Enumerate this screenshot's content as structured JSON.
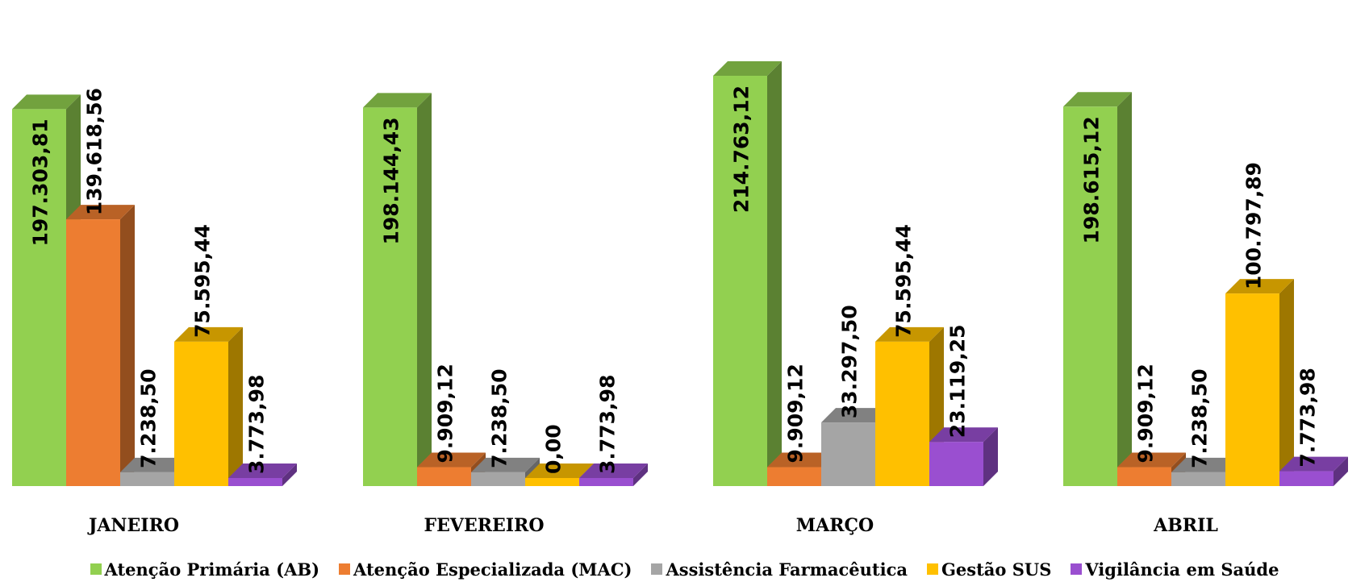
{
  "chart_data": {
    "type": "bar",
    "categories": [
      "JANEIRO",
      "FEVEREIRO",
      "MARÇO",
      "ABRIL"
    ],
    "series": [
      {
        "name": "Atenção Primária (AB)",
        "color": "#92d050",
        "values": [
          197303.81,
          198144.43,
          214763.12,
          198615.12
        ],
        "labels": [
          "197.303,81",
          "198.144,43",
          "214.763,12",
          "198.615,12"
        ]
      },
      {
        "name": "Atenção Especializada (MAC)",
        "color": "#ed7d31",
        "values": [
          139618.56,
          9909.12,
          9909.12,
          9909.12
        ],
        "labels": [
          "139.618,56",
          "9.909,12",
          "9.909,12",
          "9.909,12"
        ]
      },
      {
        "name": "Assistência Farmacêutica",
        "color": "#a5a5a5",
        "values": [
          7238.5,
          7238.5,
          33297.5,
          7238.5
        ],
        "labels": [
          "7.238,50",
          "7.238,50",
          "33.297,50",
          "7.238,50"
        ]
      },
      {
        "name": "Gestão SUS",
        "color": "#ffc000",
        "values": [
          75595.44,
          0.0,
          75595.44,
          100797.89
        ],
        "labels": [
          "75.595,44",
          "0,00",
          "75.595,44",
          "100.797,89"
        ]
      },
      {
        "name": "Vigilância em Saúde",
        "color": "#9a4fd0",
        "values": [
          3773.98,
          3773.98,
          23119.25,
          7773.98
        ],
        "labels": [
          "3.773,98",
          "3.773,98",
          "23.119,25",
          "7.773,98"
        ]
      }
    ],
    "grid": false,
    "legend": "bottom"
  }
}
